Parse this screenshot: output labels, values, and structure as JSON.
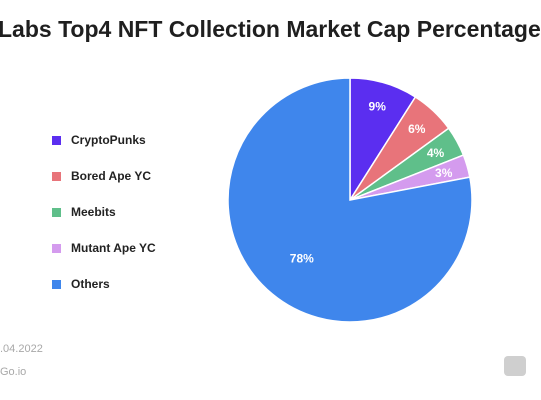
{
  "chart_data": {
    "type": "pie",
    "title": "Labs Top4 NFT Collection Market Cap Percentage",
    "slices": [
      {
        "name": "CryptoPunks",
        "value": 9,
        "label": "9%",
        "color": "#5b2ef0"
      },
      {
        "name": "Bored Ape YC",
        "value": 6,
        "label": "6%",
        "color": "#e8747a"
      },
      {
        "name": "Meebits",
        "value": 4,
        "label": "4%",
        "color": "#5fbf8a"
      },
      {
        "name": "Mutant Ape YC",
        "value": 3,
        "label": "3%",
        "color": "#d49bee"
      },
      {
        "name": "Others",
        "value": 78,
        "label": "78%",
        "color": "#3f86ec"
      }
    ],
    "legend_position": "left"
  },
  "footer": {
    "date": ".04.2022",
    "source": "Go.io"
  },
  "logo": {
    "icon": "brand-logo-icon"
  }
}
